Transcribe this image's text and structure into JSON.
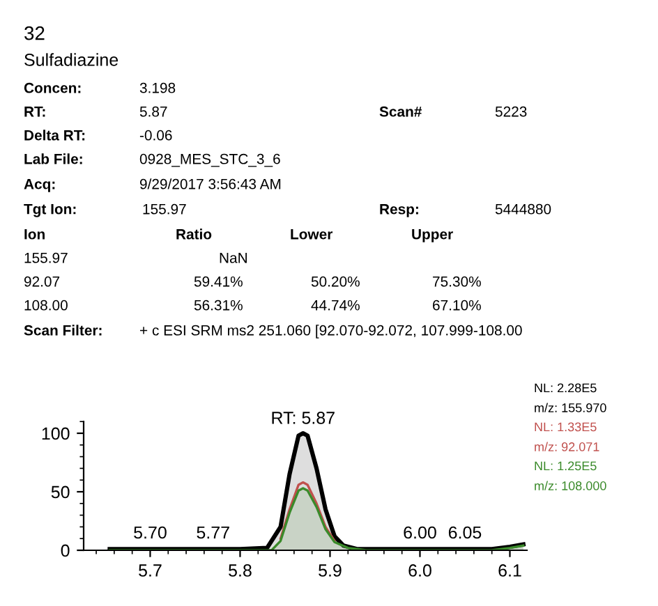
{
  "chart_data": {
    "type": "area",
    "title": "32",
    "subtitle": "Sulfadiazine",
    "annotations": [
      "Concen:",
      "3.198",
      "RT:",
      "5.87",
      "Scan#",
      "5223",
      "Delta RT:",
      "-0.06",
      "Lab File:",
      "0928_MES_STC_3_6",
      "Acq:",
      "9/29/2017 3:56:43 AM",
      "Tgt Ion:",
      "155.97",
      "Resp:",
      "5444880",
      "Ion",
      "Ratio",
      "Lower",
      "Upper",
      "155.97",
      "NaN",
      "92.07",
      "59.41%",
      "50.20%",
      "75.30%",
      "108.00",
      "56.31%",
      "44.74%",
      "67.10%",
      "Scan Filter:",
      "+ c ESI SRM ms2 251.060 [92.070-92.072, 107.999-108.00",
      {
        "text": "RT: 5.87",
        "x": 5.87,
        "y": 100
      },
      {
        "text": "5.70",
        "x": 5.7,
        "y": 2
      },
      {
        "text": "5.77",
        "x": 5.77,
        "y": 2
      },
      {
        "text": "6.00",
        "x": 6.0,
        "y": 2
      },
      {
        "text": "6.05",
        "x": 6.05,
        "y": 2
      }
    ],
    "series": [
      {
        "name": "NL: 2.28E5\nm/z: 155.970",
        "color": "#000000",
        "x": [
          5.655,
          5.7,
          5.8,
          5.83,
          5.845,
          5.855,
          5.865,
          5.87,
          5.875,
          5.885,
          5.895,
          5.905,
          5.915,
          5.93,
          6.0,
          6.08,
          6.1,
          6.115
        ],
        "values": [
          1,
          1,
          1,
          2,
          20,
          65,
          98,
          100,
          98,
          70,
          35,
          12,
          4,
          1,
          1,
          1,
          3,
          5
        ]
      },
      {
        "name": "NL: 1.33E5\nm/z: 92.071",
        "color": "#c0504d",
        "type": "line",
        "x": [
          5.845,
          5.855,
          5.865,
          5.87,
          5.875,
          5.885,
          5.895,
          5.905
        ],
        "values": [
          10,
          35,
          56,
          58,
          56,
          40,
          20,
          8
        ]
      },
      {
        "name": "NL: 1.25E5\nm/z: 108.000",
        "color": "#3a8a2a",
        "x": [
          5.655,
          5.8,
          5.835,
          5.845,
          5.855,
          5.865,
          5.87,
          5.875,
          5.885,
          5.895,
          5.905,
          5.92,
          5.94,
          6.08,
          6.1,
          6.115
        ],
        "values": [
          0,
          0,
          0,
          8,
          32,
          51,
          53,
          51,
          37,
          18,
          7,
          2,
          0,
          0,
          2,
          4
        ]
      }
    ],
    "xlim": [
      5.626,
      6.119
    ],
    "ylim": [
      0,
      110
    ],
    "xticks": [
      5.7,
      5.8,
      5.9,
      {
        "value": 6.0,
        "label": "6.0"
      },
      6.1
    ],
    "yticks": [
      0,
      50,
      100
    ],
    "grid": false,
    "legend": "right"
  }
}
